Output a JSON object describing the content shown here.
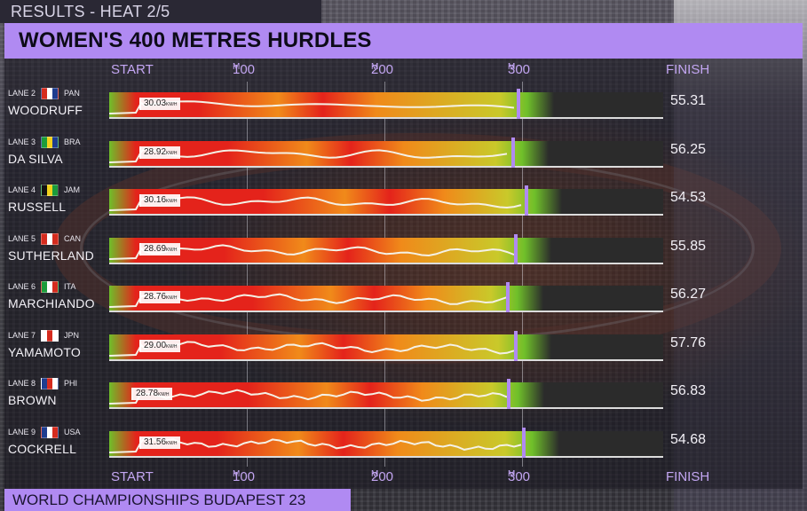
{
  "header": {
    "results_label": "RESULTS - HEAT  2/5",
    "title": "WOMEN'S 400 METRES HURDLES"
  },
  "scale": {
    "start": "START",
    "m100": "100",
    "m200": "200",
    "m300": "300",
    "unit": "M",
    "finish": "FINISH"
  },
  "footer": {
    "text": "WORLD CHAMPIONSHIPS BUDAPEST 23"
  },
  "speed_unit": "KM/H",
  "lanes": [
    {
      "lane": "LANE 2",
      "country": "PAN",
      "name": "WOODRUFF",
      "speed": "30.03",
      "time": "55.31",
      "flag": [
        "#d52b1e",
        "#ffffff",
        "#1e3d8f"
      ],
      "progress": 0.739
    },
    {
      "lane": "LANE 3",
      "country": "BRA",
      "name": "DA SILVA",
      "speed": "28.92",
      "time": "56.25",
      "flag": [
        "#1b9c3b",
        "#f2d21c",
        "#1e3d8f"
      ],
      "progress": 0.729
    },
    {
      "lane": "LANE 4",
      "country": "JAM",
      "name": "RUSSELL",
      "speed": "30.16",
      "time": "54.53",
      "flag": [
        "#111111",
        "#f2d21c",
        "#1b9c3b"
      ],
      "progress": 0.754
    },
    {
      "lane": "LANE 5",
      "country": "CAN",
      "name": "SUTHERLAND",
      "speed": "28.69",
      "time": "55.85",
      "flag": [
        "#d52b1e",
        "#ffffff",
        "#d52b1e"
      ],
      "progress": 0.734
    },
    {
      "lane": "LANE 6",
      "country": "ITA",
      "name": "MARCHIANDO",
      "speed": "28.76",
      "time": "56.27",
      "flag": [
        "#1b9c3b",
        "#ffffff",
        "#d52b1e"
      ],
      "progress": 0.719
    },
    {
      "lane": "LANE 7",
      "country": "JPN",
      "name": "YAMAMOTO",
      "speed": "29.00",
      "time": "57.76",
      "flag": [
        "#ffffff",
        "#d52b1e",
        "#ffffff"
      ],
      "progress": 0.734
    },
    {
      "lane": "LANE 8",
      "country": "PHI",
      "name": "BROWN",
      "speed": "28.78",
      "time": "56.83",
      "flag": [
        "#1e3d8f",
        "#d52b1e",
        "#ffffff"
      ],
      "progress": 0.721
    },
    {
      "lane": "LANE 9",
      "country": "USA",
      "name": "COCKRELL",
      "speed": "31.56",
      "time": "54.68",
      "flag": [
        "#1e3d8f",
        "#ffffff",
        "#d52b1e"
      ],
      "progress": 0.748
    }
  ],
  "colors": {
    "accent": "#b08af2",
    "speed_fast": "#e4231b",
    "speed_mid": "#f08a1a",
    "speed_slow": "#c9c92a",
    "speed_start": "#6fbf2a"
  }
}
